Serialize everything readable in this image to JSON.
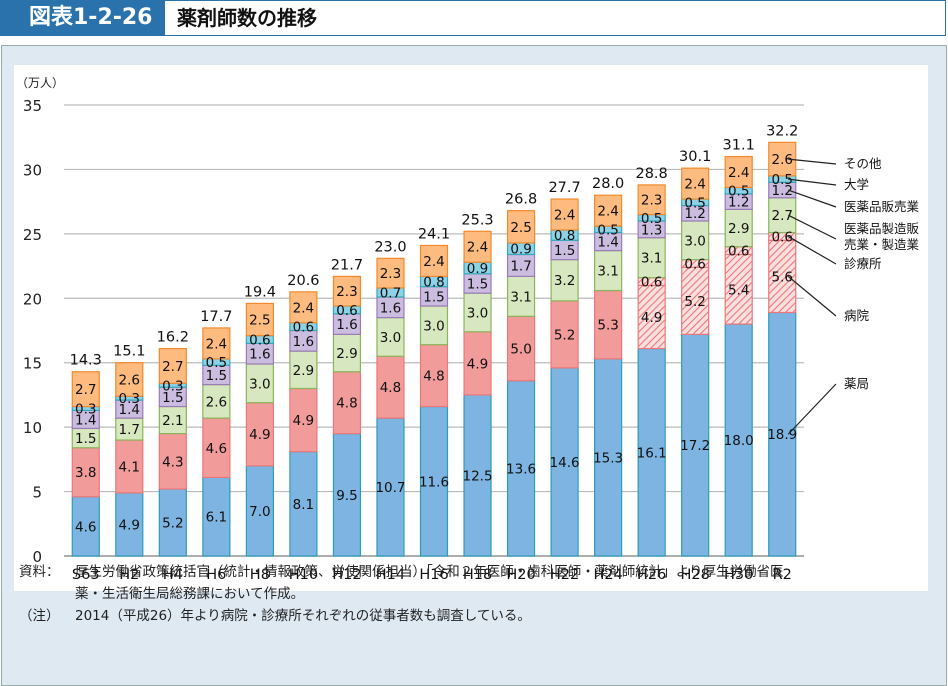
{
  "header": {
    "figure_number": "図表1-2-26",
    "title": "薬剤師数の推移"
  },
  "notes": {
    "source_label": "資料：",
    "source_text_line1": "厚生労働省政策統括官（統計・情報政策、労使関係担当）「令和２年医師・歯科医師・薬剤師統計」より厚生労働省医",
    "source_text_line2": "薬・生活衛生局総務課において作成。",
    "note_label": "（注）",
    "note_text": "2014（平成26）年より病院・診療所それぞれの従事者数も調査している。"
  },
  "chart_data": {
    "type": "bar",
    "stacked": true,
    "title": "薬剤師数の推移",
    "ylabel": "（万人）",
    "xlabel": "",
    "ylim": [
      0,
      35
    ],
    "yticks": [
      0,
      5,
      10,
      15,
      20,
      25,
      30,
      35
    ],
    "grid": true,
    "legend_position": "right",
    "categories": [
      "S63",
      "H2",
      "H4",
      "H6",
      "H8",
      "H10",
      "H12",
      "H14",
      "H16",
      "H18",
      "H20",
      "H22",
      "H24",
      "H26",
      "H28",
      "H30",
      "R2"
    ],
    "totals": [
      14.3,
      15.1,
      16.2,
      17.7,
      19.4,
      20.6,
      21.7,
      23.0,
      24.1,
      25.3,
      26.8,
      27.7,
      28.0,
      28.8,
      30.1,
      31.1,
      32.2
    ],
    "series": [
      {
        "name": "薬局",
        "color": "#7db4e2",
        "values": [
          4.6,
          4.9,
          5.2,
          6.1,
          7.0,
          8.1,
          9.5,
          10.7,
          11.6,
          12.5,
          13.6,
          14.6,
          15.3,
          16.1,
          17.2,
          18.0,
          18.9
        ]
      },
      {
        "name": "病院",
        "color": "#f19b9b",
        "hatched_from_index": 13,
        "values": [
          3.8,
          4.1,
          4.3,
          4.6,
          4.9,
          4.9,
          4.8,
          4.8,
          4.8,
          4.9,
          5.0,
          5.2,
          5.3,
          4.9,
          5.2,
          5.4,
          5.6
        ]
      },
      {
        "name": "診療所",
        "color": "#f19b9b",
        "hatched": true,
        "values": [
          null,
          null,
          null,
          null,
          null,
          null,
          null,
          null,
          null,
          null,
          null,
          null,
          null,
          0.6,
          0.6,
          0.6,
          0.6
        ]
      },
      {
        "name": "医薬品製造販売業・製造業",
        "color": "#d7e7bf",
        "values": [
          1.5,
          1.7,
          2.1,
          2.6,
          3.0,
          2.9,
          2.9,
          3.0,
          3.0,
          3.0,
          3.1,
          3.2,
          3.1,
          3.1,
          3.0,
          2.9,
          2.7
        ]
      },
      {
        "name": "医薬品販売業",
        "color": "#cbbde0",
        "values": [
          1.4,
          1.4,
          1.5,
          1.5,
          1.6,
          1.6,
          1.6,
          1.6,
          1.5,
          1.5,
          1.7,
          1.5,
          1.4,
          1.3,
          1.2,
          1.2,
          1.2
        ]
      },
      {
        "name": "大学",
        "color": "#8ed2e8",
        "values": [
          0.3,
          0.3,
          0.3,
          0.5,
          0.6,
          0.6,
          0.6,
          0.7,
          0.8,
          0.9,
          0.9,
          0.8,
          0.5,
          0.5,
          0.5,
          0.5,
          0.5
        ]
      },
      {
        "name": "その他",
        "color": "#fdbb80",
        "values": [
          2.7,
          2.6,
          2.7,
          2.4,
          2.5,
          2.4,
          2.3,
          2.3,
          2.4,
          2.4,
          2.5,
          2.4,
          2.4,
          2.3,
          2.4,
          2.4,
          2.6
        ]
      }
    ],
    "legend_labels": [
      {
        "series": "その他",
        "text": [
          "その他"
        ]
      },
      {
        "series": "大学",
        "text": [
          "大学"
        ]
      },
      {
        "series": "医薬品販売業",
        "text": [
          "医薬品販売業"
        ]
      },
      {
        "series": "医薬品製造販売業・製造業",
        "text": [
          "医薬品製造販",
          "売業・製造業"
        ]
      },
      {
        "series": "診療所",
        "text": [
          "診療所"
        ]
      },
      {
        "series": "病院",
        "text": [
          "病院"
        ]
      },
      {
        "series": "薬局",
        "text": [
          "薬局"
        ]
      }
    ]
  }
}
